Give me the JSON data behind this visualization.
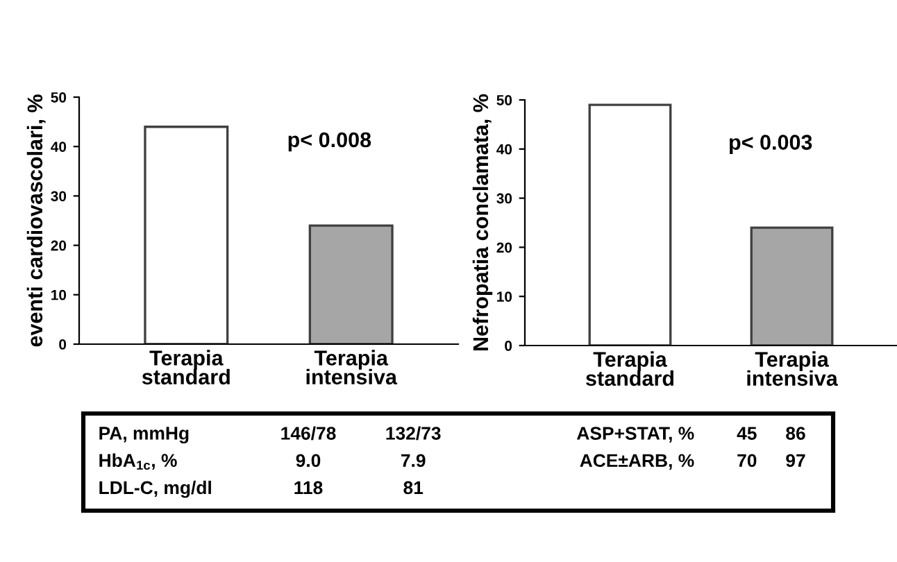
{
  "chart_data": [
    {
      "type": "bar",
      "ylabel": "eventi cardiovascolari, %",
      "categories": [
        "Terapia\nstandard",
        "Terapia\nintensiva"
      ],
      "values": [
        44,
        24
      ],
      "colors": [
        "#ffffff",
        "#a6a6a6"
      ],
      "ylim": [
        0,
        50
      ],
      "yticks": [
        0,
        10,
        20,
        30,
        40,
        50
      ],
      "annotations": [
        "p< 0.008"
      ],
      "grid": false
    },
    {
      "type": "bar",
      "ylabel": "Nefropatia conclamata, %",
      "categories": [
        "Terapia\nstandard",
        "Terapia\nintensiva"
      ],
      "values": [
        49,
        24
      ],
      "colors": [
        "#ffffff",
        "#a6a6a6"
      ],
      "ylim": [
        0,
        50
      ],
      "yticks": [
        0,
        10,
        20,
        30,
        40,
        50
      ],
      "annotations": [
        "p< 0.003"
      ],
      "grid": false
    },
    {
      "type": "other",
      "annotations": [
        "PA, mmHg",
        "146/78",
        "132/73",
        "ASP+STAT, %",
        "45",
        "86",
        "HbA$_{1c}$, %",
        "9.0",
        "7.9",
        "ACE±ARB, %",
        "70",
        "97",
        "LDL-C, mg/dl",
        "118",
        "81"
      ]
    }
  ]
}
